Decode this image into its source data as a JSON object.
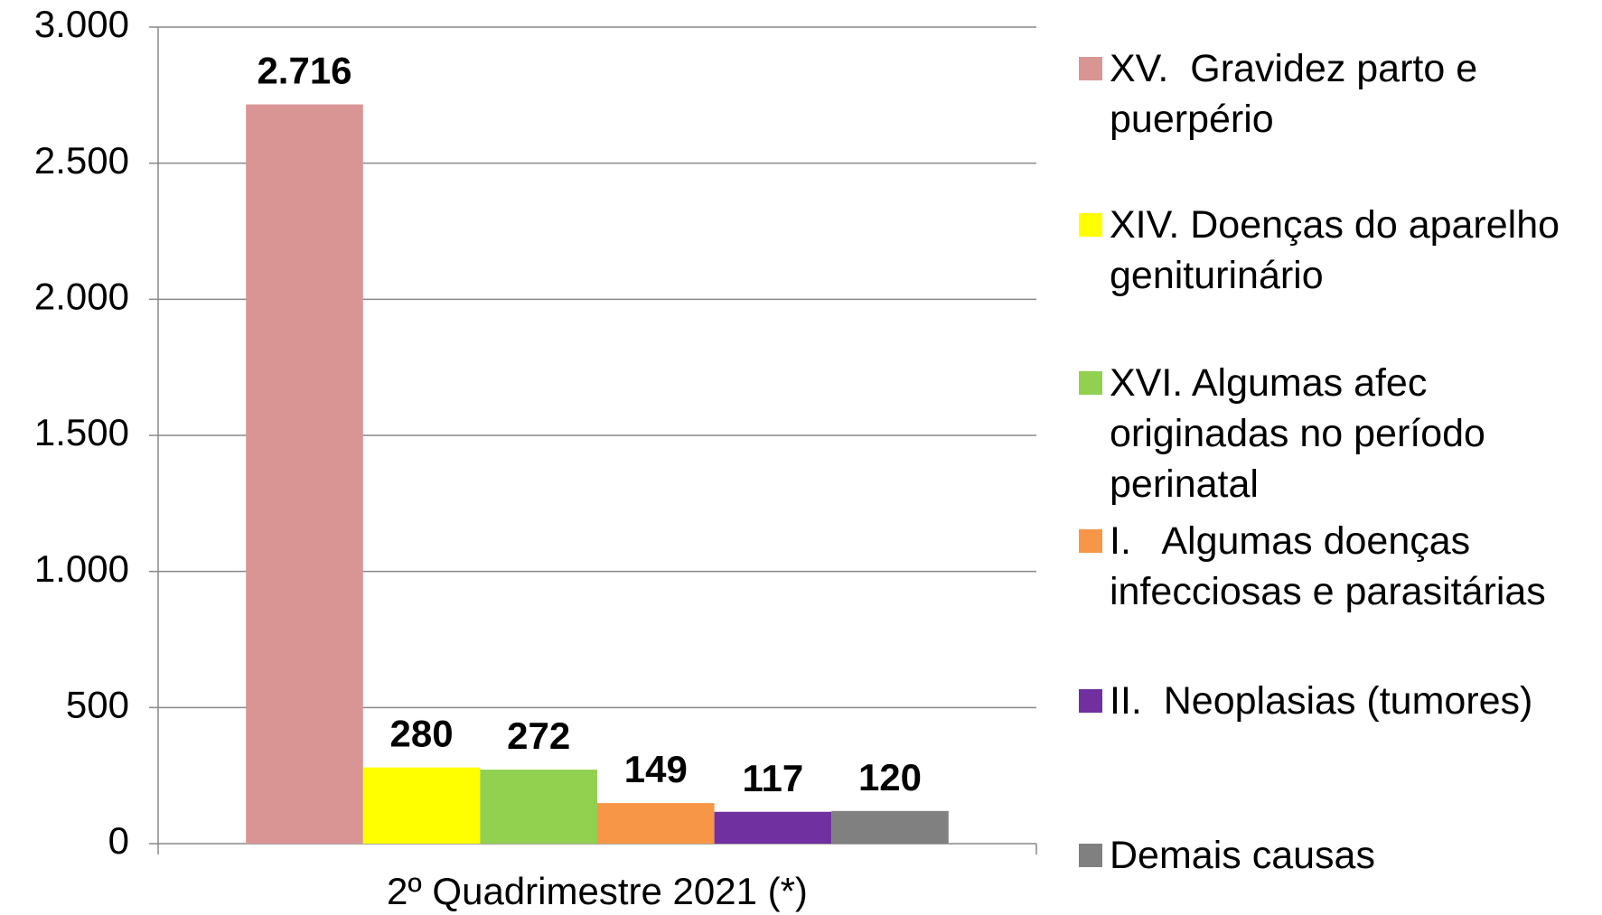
{
  "chart_data": {
    "type": "bar",
    "categories": [
      "2º Quadrimestre 2021 (*)"
    ],
    "series": [
      {
        "name": "XV.  Gravidez parto e puerpério",
        "color": "#d99594",
        "values": [
          2716
        ],
        "value_labels": [
          "2.716"
        ]
      },
      {
        "name": "XIV. Doenças do aparelho geniturinário",
        "color": "#ffff00",
        "values": [
          280
        ],
        "value_labels": [
          "280"
        ]
      },
      {
        "name": "XVI. Algumas afec originadas no período perinatal",
        "color": "#92d050",
        "values": [
          272
        ],
        "value_labels": [
          "272"
        ]
      },
      {
        "name": "I.   Algumas doenças infecciosas e parasitárias",
        "color": "#f79646",
        "values": [
          149
        ],
        "value_labels": [
          "149"
        ]
      },
      {
        "name": "II.  Neoplasias (tumores)",
        "color": "#7030a0",
        "values": [
          117
        ],
        "value_labels": [
          "117"
        ]
      },
      {
        "name": "Demais causas",
        "color": "#808080",
        "values": [
          120
        ],
        "value_labels": [
          "120"
        ]
      }
    ],
    "ylim": [
      0,
      3000
    ],
    "yticks": [
      0,
      500,
      {
        "value": 1000,
        "label": "1.000"
      },
      {
        "value": 1500,
        "label": "1.500"
      },
      {
        "value": 2000,
        "label": "2.000"
      },
      {
        "value": 2500,
        "label": "2.500"
      },
      {
        "value": 3000,
        "label": "3.000"
      }
    ],
    "grid": true,
    "legend": "right"
  }
}
